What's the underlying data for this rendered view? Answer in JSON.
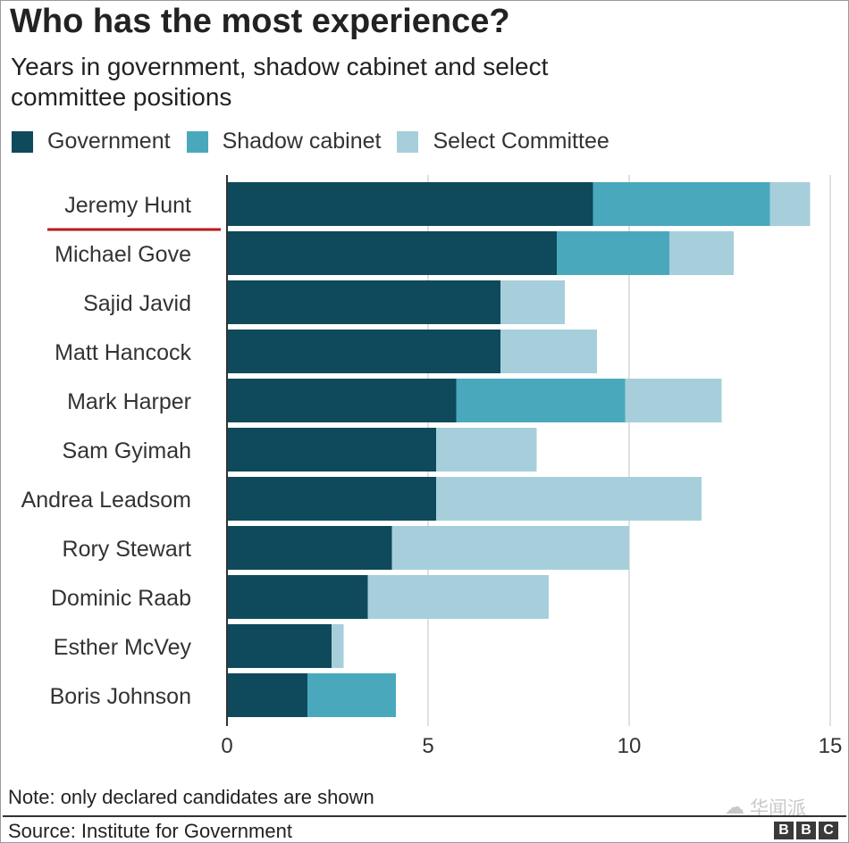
{
  "title": "Who has the most experience?",
  "subtitle": "Years in government, shadow cabinet and select committee positions",
  "legend": [
    {
      "label": "Government",
      "color": "#0e4a5b"
    },
    {
      "label": "Shadow cabinet",
      "color": "#4aa8bd"
    },
    {
      "label": "Select Committee",
      "color": "#a6cfdb"
    }
  ],
  "note": "Note: only declared candidates are shown",
  "source": "Source: Institute for Government",
  "watermark": "华闻派",
  "logo": {
    "letters": [
      "B",
      "B",
      "C"
    ]
  },
  "highlight_color": "#bb1919",
  "chart_data": {
    "type": "bar",
    "orientation": "horizontal",
    "stacked": true,
    "title": "Who has the most experience?",
    "xlabel": "",
    "ylabel": "",
    "xlim": [
      0,
      15
    ],
    "xticks": [
      0,
      5,
      10,
      15
    ],
    "grid": true,
    "highlighted_category": "Jeremy Hunt",
    "categories": [
      "Jeremy Hunt",
      "Michael Gove",
      "Sajid Javid",
      "Matt Hancock",
      "Mark Harper",
      "Sam Gyimah",
      "Andrea Leadsom",
      "Rory Stewart",
      "Dominic Raab",
      "Esther McVey",
      "Boris Johnson"
    ],
    "series": [
      {
        "name": "Government",
        "color": "#0e4a5b",
        "values": [
          9.1,
          8.2,
          6.8,
          6.8,
          5.7,
          5.2,
          5.2,
          4.1,
          3.5,
          2.6,
          2.0
        ]
      },
      {
        "name": "Shadow cabinet",
        "color": "#4aa8bd",
        "values": [
          4.4,
          2.8,
          0,
          0,
          4.2,
          0,
          0,
          0,
          0,
          0,
          2.2
        ]
      },
      {
        "name": "Select Committee",
        "color": "#a6cfdb",
        "values": [
          1.0,
          1.6,
          1.6,
          2.4,
          2.4,
          2.5,
          6.6,
          5.9,
          4.5,
          0.3,
          0
        ]
      }
    ]
  }
}
